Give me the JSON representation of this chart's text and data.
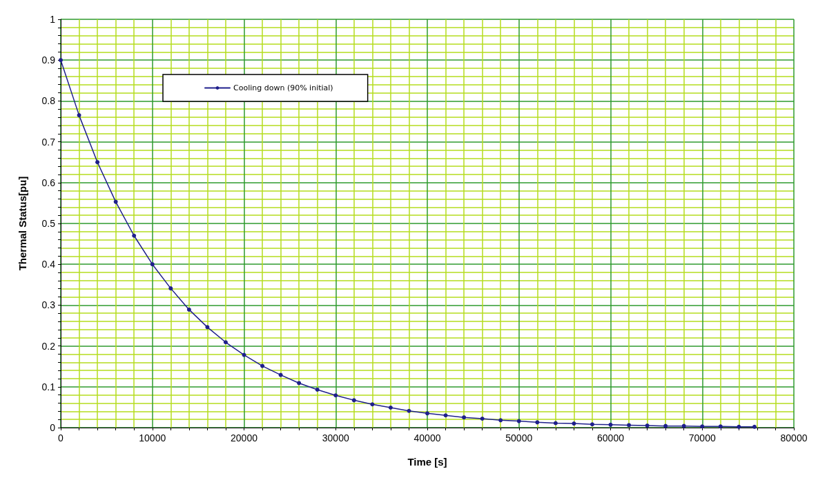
{
  "chart_data": {
    "type": "line",
    "xlabel": "Time [s]",
    "ylabel": "Thermal Status[pu]",
    "xlim": [
      0,
      80000
    ],
    "xticks": [
      0,
      {
        "value": 2000,
        "label": null
      },
      {
        "value": 4000,
        "label": null
      },
      {
        "value": 6000,
        "label": null
      },
      {
        "value": 8000,
        "label": null
      },
      10000,
      {
        "value": 12000,
        "label": null
      },
      {
        "value": 14000,
        "label": null
      },
      {
        "value": 16000,
        "label": null
      },
      {
        "value": 18000,
        "label": null
      },
      20000,
      {
        "value": 22000,
        "label": null
      },
      {
        "value": 24000,
        "label": null
      },
      {
        "value": 26000,
        "label": null
      },
      {
        "value": 28000,
        "label": null
      },
      30000,
      {
        "value": 32000,
        "label": null
      },
      {
        "value": 34000,
        "label": null
      },
      {
        "value": 36000,
        "label": null
      },
      {
        "value": 38000,
        "label": null
      },
      40000,
      {
        "value": 42000,
        "label": null
      },
      {
        "value": 44000,
        "label": null
      },
      {
        "value": 46000,
        "label": null
      },
      {
        "value": 48000,
        "label": null
      },
      50000,
      {
        "value": 52000,
        "label": null
      },
      {
        "value": 54000,
        "label": null
      },
      {
        "value": 56000,
        "label": null
      },
      {
        "value": 58000,
        "label": null
      },
      60000,
      {
        "value": 62000,
        "label": null
      },
      {
        "value": 64000,
        "label": null
      },
      {
        "value": 66000,
        "label": null
      },
      {
        "value": 68000,
        "label": null
      },
      70000,
      {
        "value": 72000,
        "label": null
      },
      {
        "value": 74000,
        "label": null
      },
      {
        "value": 76000,
        "label": null
      },
      {
        "value": 78000,
        "label": null
      },
      80000
    ],
    "ylim": [
      0,
      1
    ],
    "yticks": [
      0,
      {
        "value": 0.02,
        "label": null
      },
      {
        "value": 0.04,
        "label": null
      },
      {
        "value": 0.06,
        "label": null
      },
      {
        "value": 0.08,
        "label": null
      },
      0.1,
      {
        "value": 0.12,
        "label": null
      },
      {
        "value": 0.14,
        "label": null
      },
      {
        "value": 0.16,
        "label": null
      },
      {
        "value": 0.18,
        "label": null
      },
      0.2,
      {
        "value": 0.22,
        "label": null
      },
      {
        "value": 0.24,
        "label": null
      },
      {
        "value": 0.26,
        "label": null
      },
      {
        "value": 0.28,
        "label": null
      },
      0.3,
      {
        "value": 0.32,
        "label": null
      },
      {
        "value": 0.34,
        "label": null
      },
      {
        "value": 0.36,
        "label": null
      },
      {
        "value": 0.38,
        "label": null
      },
      0.4,
      {
        "value": 0.42,
        "label": null
      },
      {
        "value": 0.44,
        "label": null
      },
      {
        "value": 0.46,
        "label": null
      },
      {
        "value": 0.48,
        "label": null
      },
      0.5,
      {
        "value": 0.52,
        "label": null
      },
      {
        "value": 0.54,
        "label": null
      },
      {
        "value": 0.56,
        "label": null
      },
      {
        "value": 0.58,
        "label": null
      },
      0.6,
      {
        "value": 0.62,
        "label": null
      },
      {
        "value": 0.64,
        "label": null
      },
      {
        "value": 0.66,
        "label": null
      },
      {
        "value": 0.68,
        "label": null
      },
      0.7,
      {
        "value": 0.72,
        "label": null
      },
      {
        "value": 0.74,
        "label": null
      },
      {
        "value": 0.76,
        "label": null
      },
      {
        "value": 0.78,
        "label": null
      },
      0.8,
      {
        "value": 0.82,
        "label": null
      },
      {
        "value": 0.84,
        "label": null
      },
      {
        "value": 0.86,
        "label": null
      },
      {
        "value": 0.88,
        "label": null
      },
      0.9,
      {
        "value": 0.92,
        "label": null
      },
      {
        "value": 0.94,
        "label": null
      },
      {
        "value": 0.96,
        "label": null
      },
      {
        "value": 0.98,
        "label": null
      },
      1
    ],
    "grid": true,
    "legend": "top left",
    "marker": "circle",
    "line_style": "solid",
    "series": [
      {
        "name": "Cooling down (90% initial)",
        "color": "#1f1f8c",
        "x": [
          0,
          2000,
          4000,
          6000,
          8000,
          10000,
          12000,
          14000,
          16000,
          18000,
          20000,
          22000,
          24000,
          26000,
          28000,
          30000,
          32000,
          34000,
          36000,
          38000,
          40000,
          42000,
          44000,
          46000,
          48000,
          50000,
          52000,
          54000,
          56000,
          58000,
          60000,
          62000,
          64000,
          66000,
          68000,
          70000,
          72000,
          74000,
          75700
        ],
        "values": [
          0.9,
          0.765,
          0.65,
          0.553,
          0.47,
          0.4,
          0.341,
          0.289,
          0.246,
          0.209,
          0.178,
          0.151,
          0.129,
          0.109,
          0.093,
          0.079,
          0.067,
          0.057,
          0.049,
          0.041,
          0.035,
          0.03,
          0.025,
          0.022,
          0.018,
          0.016,
          0.013,
          0.011,
          0.01,
          0.008,
          0.007,
          0.006,
          0.005,
          0.004,
          0.004,
          0.003,
          0.003,
          0.002,
          0.002
        ]
      }
    ]
  }
}
